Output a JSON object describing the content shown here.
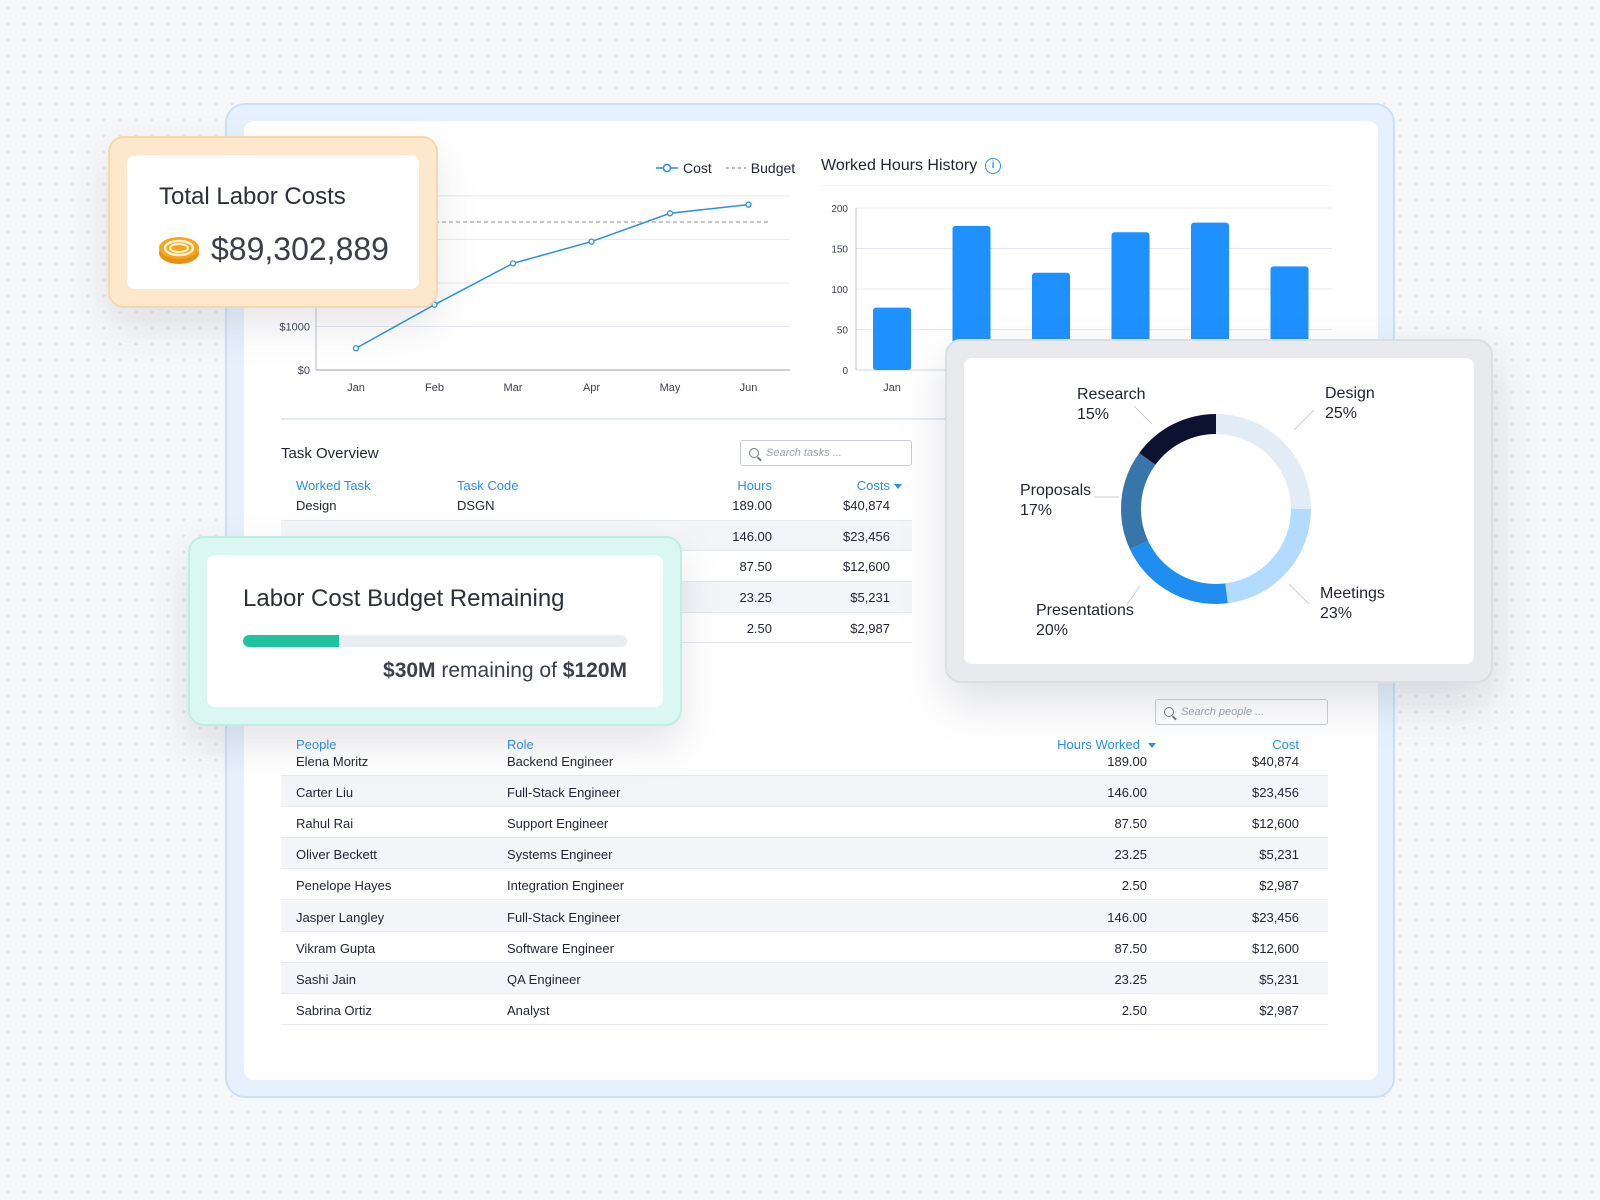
{
  "colors": {
    "accent": "#2b8fe8",
    "bar": "#1e90ff",
    "progress": "#1fc29e",
    "coin": "#f4a51c",
    "donut": [
      "#e2ecf6",
      "#b3daff",
      "#1e8ef0",
      "#3876aa",
      "#0d1230"
    ]
  },
  "cost_chart": {
    "legend": {
      "cost": "Cost",
      "budget": "Budget"
    },
    "y_ticks": [
      "$1000",
      "$0"
    ],
    "chart_data": {
      "type": "line",
      "categories": [
        "Jan",
        "Feb",
        "Mar",
        "Apr",
        "May",
        "Jun"
      ],
      "series": [
        {
          "name": "Cost",
          "values": [
            500,
            1500,
            2450,
            2950,
            3600,
            3800
          ]
        }
      ],
      "budget_line": 3400,
      "ylim": [
        0,
        4250
      ]
    }
  },
  "hours_chart": {
    "title": "Worked Hours History",
    "chart_data": {
      "type": "bar",
      "categories": [
        "Jan",
        "",
        "",
        "",
        "",
        ""
      ],
      "values": [
        77,
        178,
        120,
        170,
        182,
        128
      ],
      "yticks": [
        0,
        50,
        100,
        150,
        200
      ],
      "ylim": [
        0,
        200
      ]
    }
  },
  "total_card": {
    "title": "Total Labor Costs",
    "value": "$89,302,889",
    "icon": "coin-icon"
  },
  "budget_card": {
    "title": "Labor Cost Budget Remaining",
    "remaining": "$30M",
    "middle": " remaining of ",
    "total": "$120M",
    "fraction": 0.25
  },
  "donut": {
    "chart_data": {
      "type": "pie",
      "slices": [
        {
          "label": "Design",
          "percent": "25%",
          "value": 25
        },
        {
          "label": "Meetings",
          "percent": "23%",
          "value": 23
        },
        {
          "label": "Presentations",
          "percent": "20%",
          "value": 20
        },
        {
          "label": "Proposals",
          "percent": "17%",
          "value": 17
        },
        {
          "label": "Research",
          "percent": "15%",
          "value": 15
        }
      ]
    }
  },
  "tasks": {
    "title": "Task Overview",
    "search_placeholder": "Search tasks ...",
    "headers": {
      "task": "Worked Task",
      "code": "Task Code",
      "hours": "Hours",
      "costs": "Costs"
    },
    "rows": [
      {
        "task": "Design",
        "code": "DSGN",
        "hours": "189.00",
        "cost": "$40,874"
      },
      {
        "task": "",
        "code": "",
        "hours": "146.00",
        "cost": "$23,456"
      },
      {
        "task": "",
        "code": "",
        "hours": "87.50",
        "cost": "$12,600"
      },
      {
        "task": "",
        "code": "",
        "hours": "23.25",
        "cost": "$5,231"
      },
      {
        "task": "",
        "code": "",
        "hours": "2.50",
        "cost": "$2,987"
      }
    ]
  },
  "people": {
    "search_placeholder": "Search people ...",
    "headers": {
      "name": "People",
      "role": "Role",
      "hours": "Hours Worked",
      "cost": "Cost"
    },
    "rows": [
      {
        "name": "Elena Moritz",
        "role": "Backend Engineer",
        "hours": "189.00",
        "cost": "$40,874"
      },
      {
        "name": "Carter Liu",
        "role": "Full-Stack Engineer",
        "hours": "146.00",
        "cost": "$23,456"
      },
      {
        "name": "Rahul Rai",
        "role": "Support Engineer",
        "hours": "87.50",
        "cost": "$12,600"
      },
      {
        "name": "Oliver Beckett",
        "role": "Systems Engineer",
        "hours": "23.25",
        "cost": "$5,231"
      },
      {
        "name": "Penelope Hayes",
        "role": "Integration Engineer",
        "hours": "2.50",
        "cost": "$2,987"
      },
      {
        "name": "Jasper Langley",
        "role": "Full-Stack Engineer",
        "hours": "146.00",
        "cost": "$23,456"
      },
      {
        "name": "Vikram Gupta",
        "role": "Software Engineer",
        "hours": "87.50",
        "cost": "$12,600"
      },
      {
        "name": "Sashi Jain",
        "role": "QA Engineer",
        "hours": "23.25",
        "cost": "$5,231"
      },
      {
        "name": "Sabrina Ortiz",
        "role": "Analyst",
        "hours": "2.50",
        "cost": "$2,987"
      }
    ]
  }
}
